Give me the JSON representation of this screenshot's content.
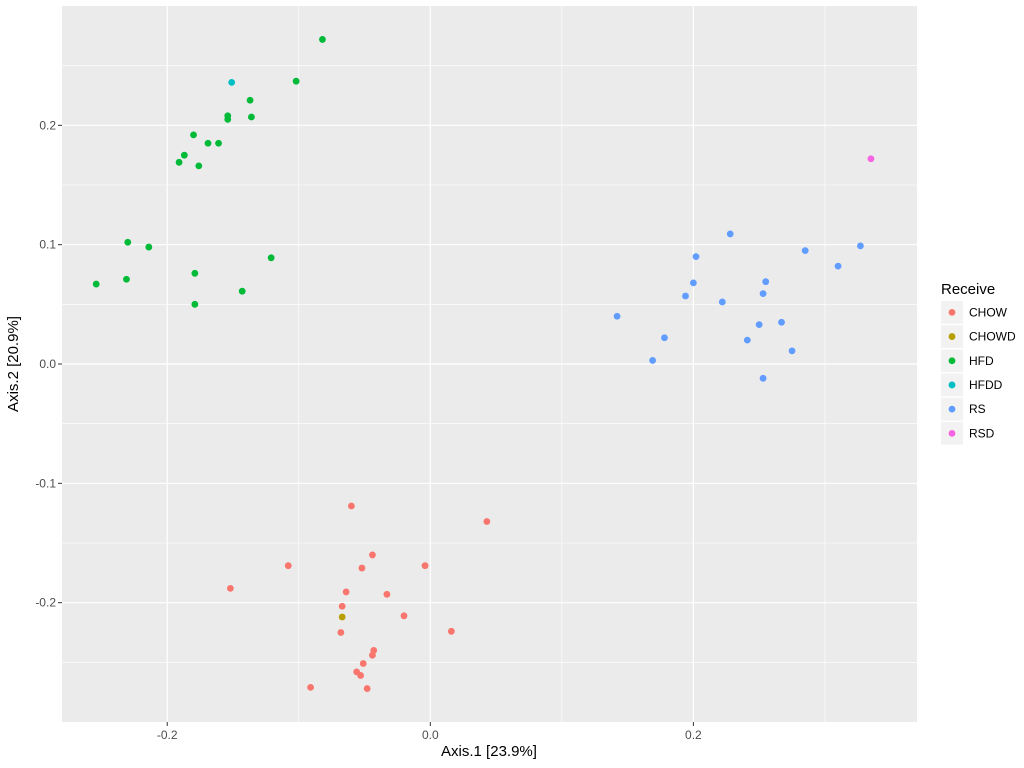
{
  "chart_data": {
    "type": "scatter",
    "xlabel": "Axis.1   [23.9%]",
    "ylabel": "Axis.2   [20.9%]",
    "xlim": [
      -0.28,
      0.37
    ],
    "ylim": [
      -0.3,
      0.3
    ],
    "x_ticks": [
      -0.2,
      0.0,
      0.2
    ],
    "x_tick_labels": [
      "-0.2",
      "0.0",
      "0.2"
    ],
    "x_minor_ticks": [
      -0.1,
      0.1,
      0.3
    ],
    "y_ticks": [
      -0.2,
      -0.1,
      0.0,
      0.1,
      0.2
    ],
    "y_tick_labels": [
      "-0.2",
      "-0.1",
      "0.0",
      "0.1",
      "0.2"
    ],
    "y_minor_ticks": [
      -0.25,
      -0.15,
      -0.05,
      0.05,
      0.15,
      0.25
    ],
    "grid": true,
    "panel_background": "#ebebeb",
    "grid_color": "#ffffff",
    "legend": {
      "title": "Receive",
      "position": "right",
      "entries": [
        {
          "label": "CHOW",
          "color": "#F8766D"
        },
        {
          "label": "CHOWD",
          "color": "#B79F00"
        },
        {
          "label": "HFD",
          "color": "#00BA38"
        },
        {
          "label": "HFDD",
          "color": "#00BFC4"
        },
        {
          "label": "RS",
          "color": "#619CFF"
        },
        {
          "label": "RSD",
          "color": "#F564E3"
        }
      ]
    },
    "series": [
      {
        "name": "CHOW",
        "color": "#F8766D",
        "points": [
          [
            -0.06,
            -0.119
          ],
          [
            0.043,
            -0.132
          ],
          [
            -0.108,
            -0.169
          ],
          [
            -0.044,
            -0.16
          ],
          [
            -0.052,
            -0.171
          ],
          [
            -0.004,
            -0.169
          ],
          [
            -0.152,
            -0.188
          ],
          [
            -0.064,
            -0.191
          ],
          [
            -0.033,
            -0.193
          ],
          [
            -0.067,
            -0.203
          ],
          [
            -0.02,
            -0.211
          ],
          [
            0.016,
            -0.224
          ],
          [
            -0.068,
            -0.225
          ],
          [
            -0.043,
            -0.24
          ],
          [
            -0.044,
            -0.244
          ],
          [
            -0.051,
            -0.251
          ],
          [
            -0.056,
            -0.258
          ],
          [
            -0.053,
            -0.261
          ],
          [
            -0.091,
            -0.271
          ],
          [
            -0.048,
            -0.272
          ]
        ]
      },
      {
        "name": "CHOWD",
        "color": "#B79F00",
        "points": [
          [
            -0.067,
            -0.212
          ]
        ]
      },
      {
        "name": "HFD",
        "color": "#00BA38",
        "points": [
          [
            -0.082,
            0.272
          ],
          [
            -0.102,
            0.237
          ],
          [
            -0.137,
            0.221
          ],
          [
            -0.136,
            0.207
          ],
          [
            -0.154,
            0.208
          ],
          [
            -0.154,
            0.205
          ],
          [
            -0.18,
            0.192
          ],
          [
            -0.169,
            0.185
          ],
          [
            -0.161,
            0.185
          ],
          [
            -0.187,
            0.175
          ],
          [
            -0.191,
            0.169
          ],
          [
            -0.176,
            0.166
          ],
          [
            -0.23,
            0.102
          ],
          [
            -0.214,
            0.098
          ],
          [
            -0.121,
            0.089
          ],
          [
            -0.179,
            0.076
          ],
          [
            -0.231,
            0.071
          ],
          [
            -0.254,
            0.067
          ],
          [
            -0.143,
            0.061
          ],
          [
            -0.179,
            0.05
          ]
        ]
      },
      {
        "name": "HFDD",
        "color": "#00BFC4",
        "points": [
          [
            -0.151,
            0.236
          ]
        ]
      },
      {
        "name": "RS",
        "color": "#619CFF",
        "points": [
          [
            0.228,
            0.109
          ],
          [
            0.327,
            0.099
          ],
          [
            0.285,
            0.095
          ],
          [
            0.202,
            0.09
          ],
          [
            0.31,
            0.082
          ],
          [
            0.255,
            0.069
          ],
          [
            0.2,
            0.068
          ],
          [
            0.253,
            0.059
          ],
          [
            0.194,
            0.057
          ],
          [
            0.222,
            0.052
          ],
          [
            0.142,
            0.04
          ],
          [
            0.267,
            0.035
          ],
          [
            0.25,
            0.033
          ],
          [
            0.178,
            0.022
          ],
          [
            0.241,
            0.02
          ],
          [
            0.275,
            0.011
          ],
          [
            0.169,
            0.003
          ],
          [
            0.253,
            -0.012
          ]
        ]
      },
      {
        "name": "RSD",
        "color": "#F564E3",
        "points": [
          [
            0.335,
            0.172
          ]
        ]
      }
    ]
  }
}
